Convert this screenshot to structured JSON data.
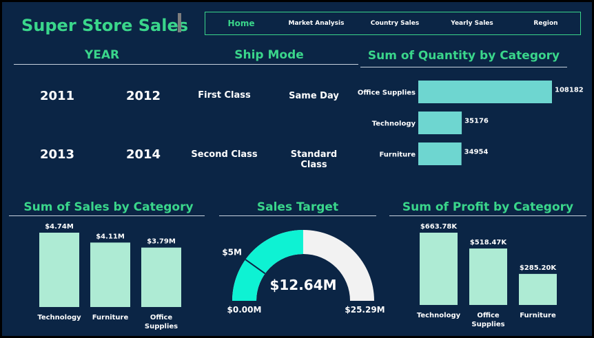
{
  "app_title": "Super Store Sales",
  "nav": {
    "items": [
      "Home",
      "Market Analysis",
      "Country Sales",
      "Yearly Sales",
      "Region"
    ],
    "active": "Home"
  },
  "year_slicer": {
    "title": "YEAR",
    "items": [
      "2011",
      "2012",
      "2013",
      "2014"
    ]
  },
  "ship_slicer": {
    "title": "Ship Mode",
    "items": [
      "First Class",
      "Same Day",
      "Second Class",
      "Standard Class"
    ]
  },
  "colors": {
    "background": "#0b2545",
    "accent": "#3ad68b",
    "bar_light": "#aeebd4",
    "bar_teal": "#6ed6d0",
    "gauge_fill": "#0ef2d3",
    "gauge_empty": "#f2f2f2"
  },
  "chart_data": [
    {
      "id": "quantity",
      "type": "bar",
      "orientation": "horizontal",
      "title": "Sum of Quantity by Category",
      "categories": [
        "Office Supplies",
        "Technology",
        "Furniture"
      ],
      "values": [
        108182,
        35176,
        34954
      ],
      "data_labels": [
        "108182",
        "35176",
        "34954"
      ],
      "xlim": [
        0,
        108182
      ]
    },
    {
      "id": "sales",
      "type": "bar",
      "title": "Sum of Sales by Category",
      "categories": [
        "Technology",
        "Furniture",
        "Office Supplies"
      ],
      "values": [
        4.74,
        4.11,
        3.79
      ],
      "data_labels": [
        "$4.74M",
        "$4.11M",
        "$3.79M"
      ],
      "ylim": [
        0,
        4.74
      ]
    },
    {
      "id": "gauge",
      "type": "gauge",
      "title": "Sales Target",
      "value": 12.64,
      "min": 0,
      "max": 25.29,
      "target": 5,
      "value_label": "$12.64M",
      "min_label": "$0.00M",
      "max_label": "$25.29M",
      "target_label": "$5M"
    },
    {
      "id": "profit",
      "type": "bar",
      "title": "Sum of Profit by Category",
      "categories": [
        "Technology",
        "Office Supplies",
        "Furniture"
      ],
      "values": [
        663.78,
        518.47,
        285.2
      ],
      "data_labels": [
        "$663.78K",
        "$518.47K",
        "$285.20K"
      ],
      "ylim": [
        0,
        663.78
      ]
    }
  ]
}
